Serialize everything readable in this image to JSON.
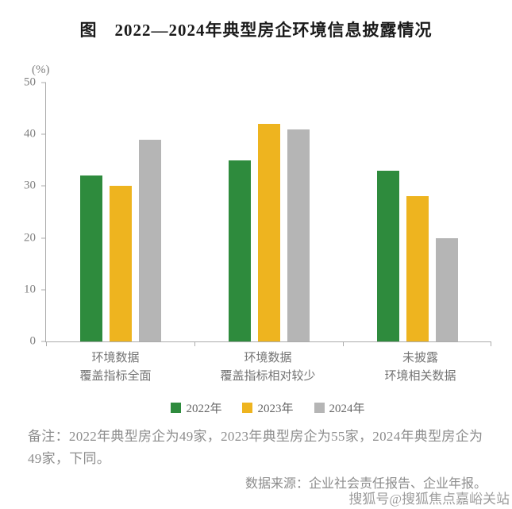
{
  "title": "图　2022—2024年典型房企环境信息披露情况",
  "chart_data": {
    "type": "bar",
    "title": "图　2022—2024年典型房企环境信息披露情况",
    "unit_label": "(%)",
    "xlabel": "",
    "ylabel": "(%)",
    "ylim": [
      0,
      50
    ],
    "y_ticks": [
      0,
      10,
      20,
      30,
      40,
      50
    ],
    "grid": false,
    "legend_position": "bottom",
    "categories": [
      [
        "环境数据",
        "覆盖指标全面"
      ],
      [
        "环境数据",
        "覆盖指标相对较少"
      ],
      [
        "未披露",
        "环境相关数据"
      ]
    ],
    "series": [
      {
        "name": "2022年",
        "color": "#2e8b3d",
        "values": [
          32,
          35,
          33
        ]
      },
      {
        "name": "2023年",
        "color": "#eeb41f",
        "values": [
          30,
          42,
          28
        ]
      },
      {
        "name": "2024年",
        "color": "#b5b5b5",
        "values": [
          39,
          41,
          20
        ]
      }
    ]
  },
  "note": "备注：2022年典型房企为49家，2023年典型房企为55家，2024年典型房企为49家，下同。",
  "source": "数据来源：企业社会责任报告、企业年报。",
  "watermark": "搜狐号@搜狐焦点嘉峪关站",
  "colors": {
    "axis": "#ababab",
    "axis_text": "#808080",
    "category_text": "#737373",
    "note_text": "#8c8c8c"
  }
}
